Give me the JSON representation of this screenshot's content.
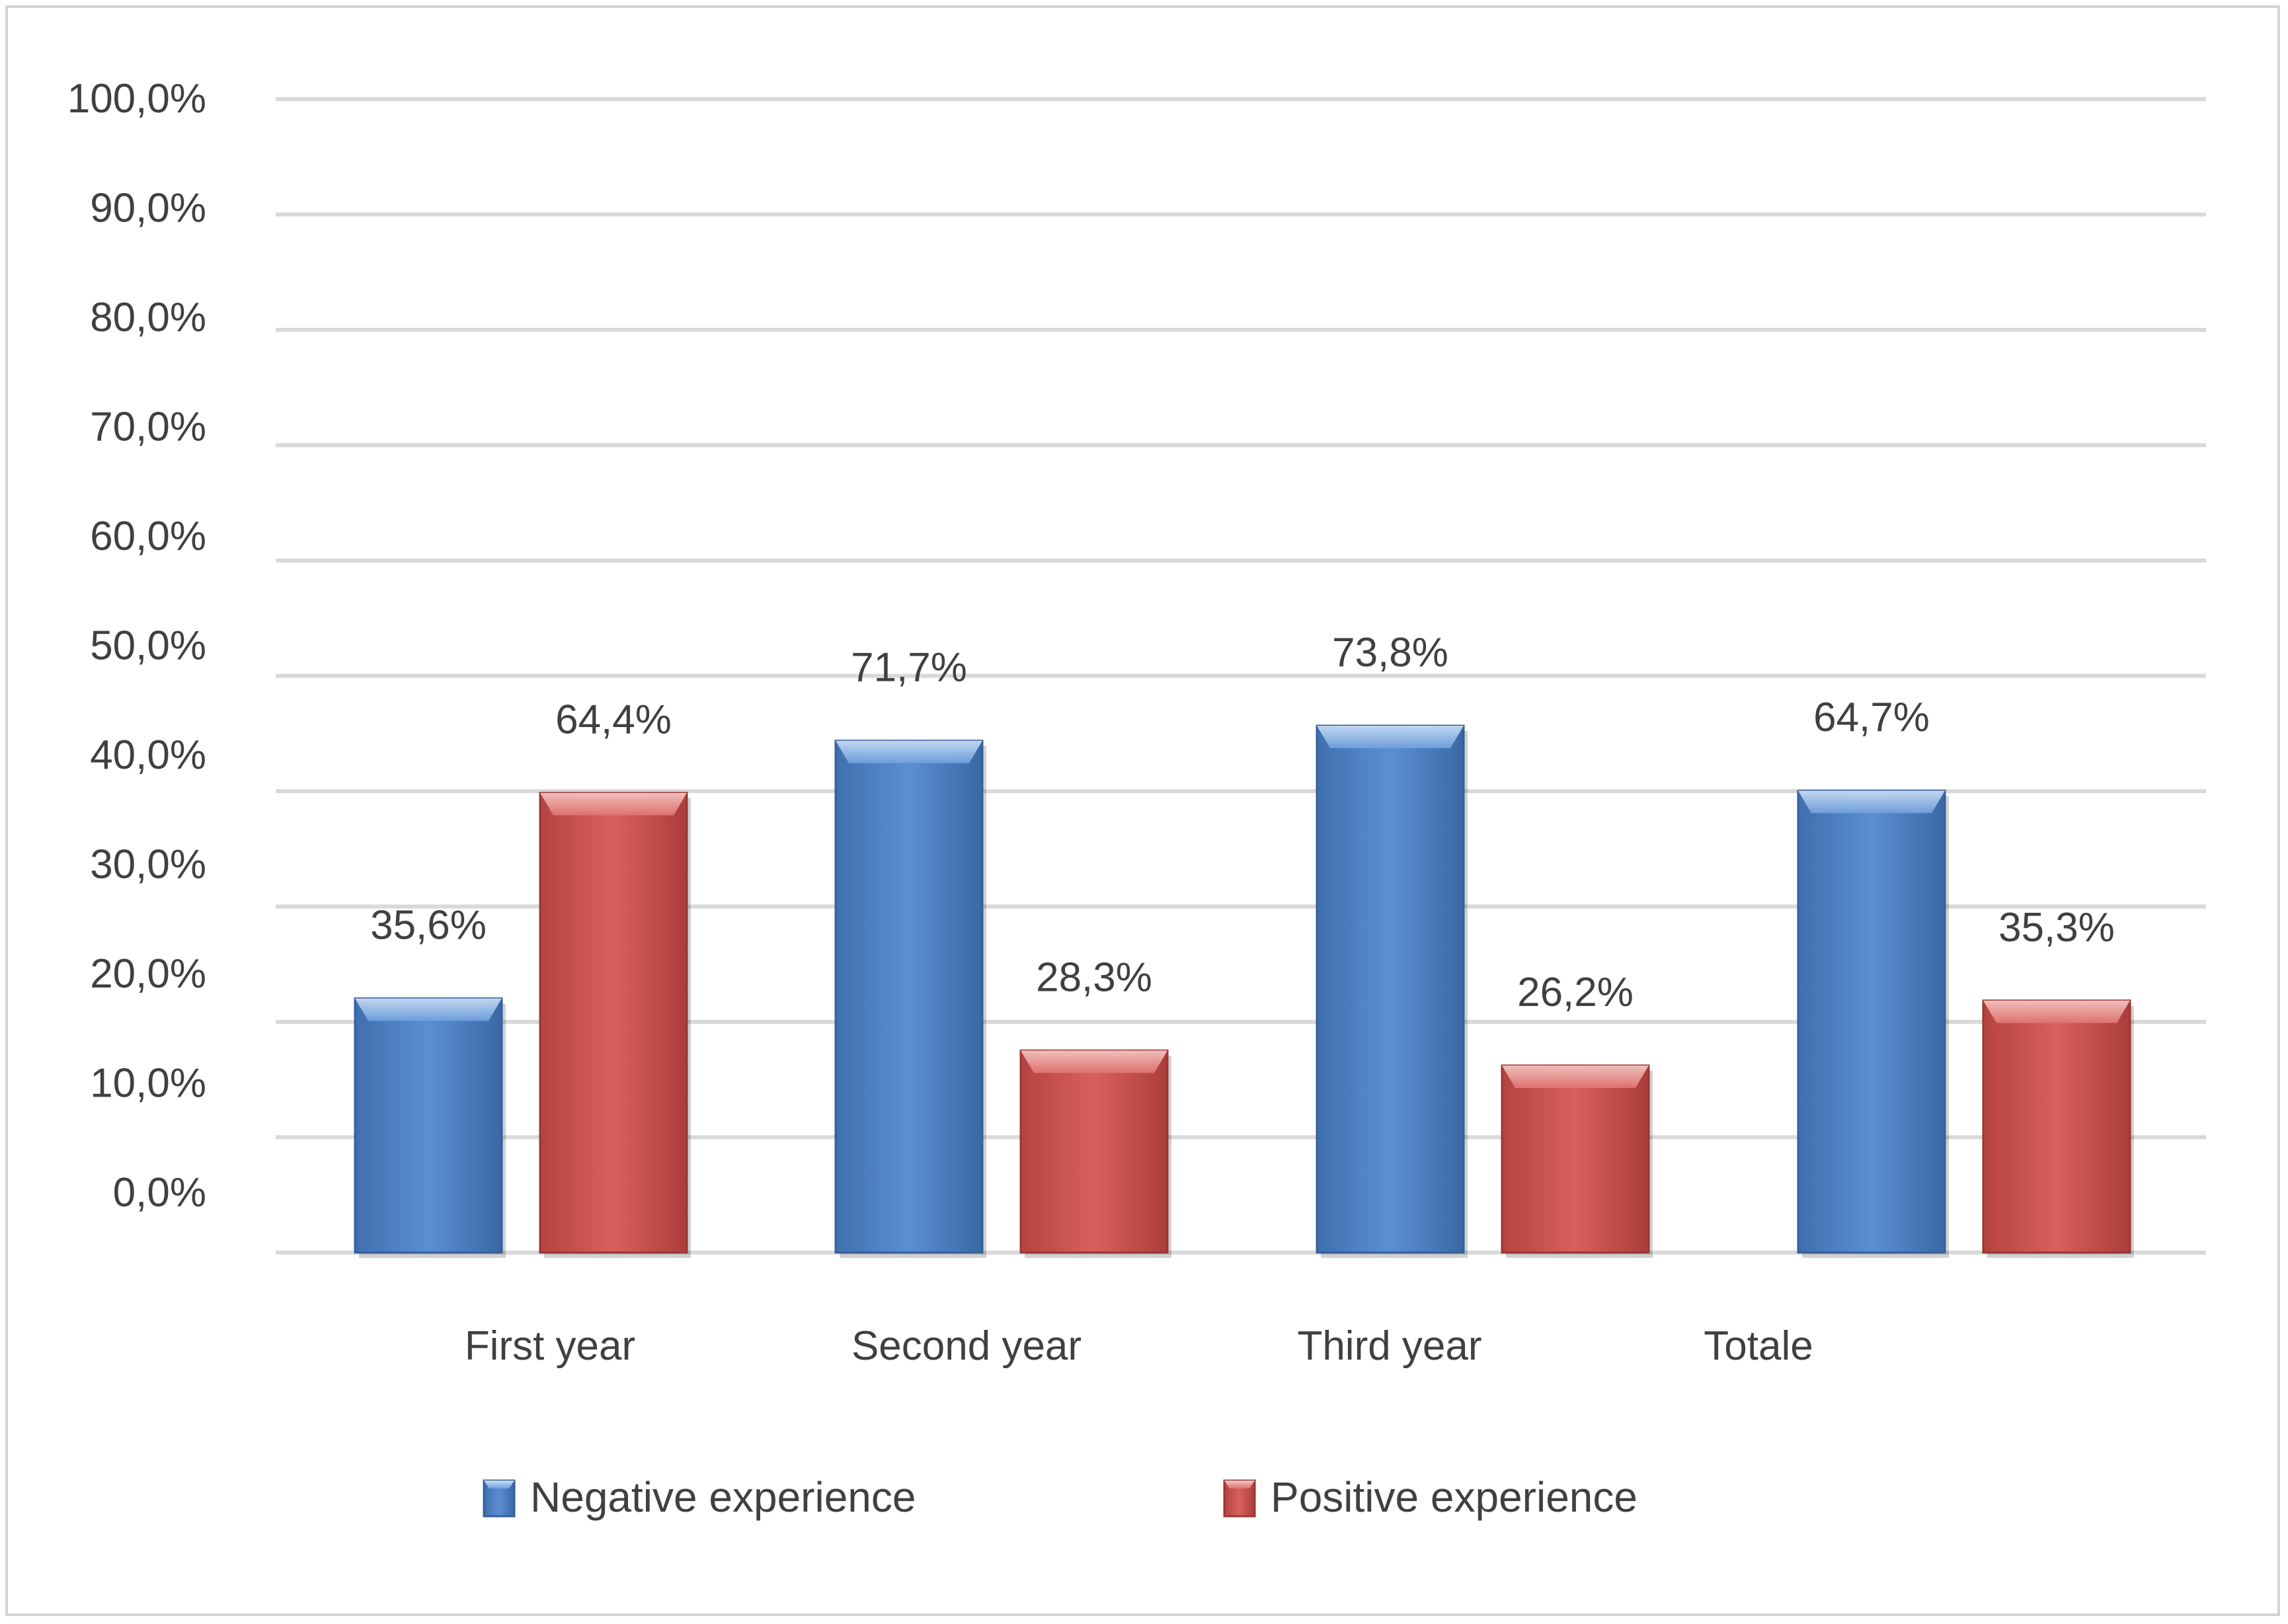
{
  "chart_data": {
    "type": "bar",
    "categories": [
      "First year",
      "Second year",
      "Third year",
      "Totale"
    ],
    "series": [
      {
        "name": "Negative experience",
        "values": [
          35.6,
          71.7,
          73.8,
          64.7
        ],
        "labels": [
          "35,6%",
          "71,7%",
          "73,8%",
          "64,7%"
        ],
        "color": "#4f81bd"
      },
      {
        "name": "Positive experience",
        "values": [
          64.4,
          28.3,
          26.2,
          35.3
        ],
        "labels": [
          "64,4%",
          "28,3%",
          "26,2%",
          "35,3%"
        ],
        "color": "#c0504d"
      }
    ],
    "y_ticks": [
      "0,0%",
      "10,0%",
      "20,0%",
      "30,0%",
      "40,0%",
      "50,0%",
      "60,0%",
      "70,0%",
      "80,0%",
      "90,0%",
      "100,0%"
    ],
    "ylim": [
      0,
      100
    ],
    "grid": true,
    "legend_position": "bottom"
  }
}
